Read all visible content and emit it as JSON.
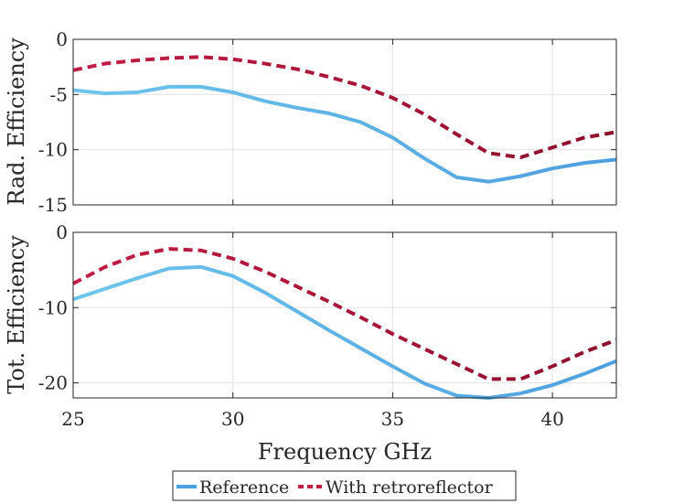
{
  "chart_data": {
    "type": "line",
    "xlabel": "Frequency GHz",
    "x": [
      25,
      26,
      27,
      28,
      29,
      30,
      31,
      32,
      33,
      34,
      35,
      36,
      37,
      38,
      39,
      40,
      41,
      42
    ],
    "xlim": [
      25,
      42
    ],
    "xticks": [
      25,
      30,
      35,
      40
    ],
    "legend": {
      "position": "bottom-outside",
      "entries": [
        "Reference",
        "With retroreflector"
      ]
    },
    "colors": {
      "reference": "#4e9fdf",
      "reference_light": "#6ec6ec",
      "retro": "#c21e45",
      "retro_dark": "#8c0f2c",
      "axis": "#262626",
      "grid": "#e3e3e3"
    },
    "panels": [
      {
        "ylabel": "Rad. Efficiency",
        "ylim": [
          -15,
          0
        ],
        "yticks": [
          0,
          -5,
          -10,
          -15
        ],
        "grid": true,
        "series": [
          {
            "name": "Reference",
            "values": [
              -4.6,
              -4.9,
              -4.8,
              -4.3,
              -4.3,
              -4.8,
              -5.6,
              -6.2,
              -6.7,
              -7.5,
              -8.9,
              -10.8,
              -12.5,
              -12.9,
              -12.4,
              -11.7,
              -11.2,
              -10.9
            ]
          },
          {
            "name": "With retroreflector",
            "values": [
              -2.8,
              -2.2,
              -1.9,
              -1.7,
              -1.6,
              -1.8,
              -2.2,
              -2.7,
              -3.4,
              -4.2,
              -5.3,
              -6.8,
              -8.6,
              -10.3,
              -10.7,
              -9.8,
              -8.9,
              -8.4
            ]
          }
        ]
      },
      {
        "ylabel": "Tot. Efficiency",
        "ylim": [
          -22,
          0
        ],
        "yticks": [
          0,
          -10,
          -20
        ],
        "grid": true,
        "series": [
          {
            "name": "Reference",
            "values": [
              -8.9,
              -7.5,
              -6.1,
              -4.8,
              -4.6,
              -5.8,
              -8.0,
              -10.5,
              -13.0,
              -15.4,
              -17.8,
              -20.1,
              -21.7,
              -22.0,
              -21.4,
              -20.3,
              -18.8,
              -17.1
            ]
          },
          {
            "name": "With retroreflector",
            "values": [
              -6.8,
              -4.6,
              -3.0,
              -2.2,
              -2.4,
              -3.5,
              -5.2,
              -7.2,
              -9.2,
              -11.3,
              -13.5,
              -15.5,
              -17.5,
              -19.5,
              -19.5,
              -17.8,
              -15.9,
              -14.3
            ]
          }
        ]
      }
    ]
  }
}
